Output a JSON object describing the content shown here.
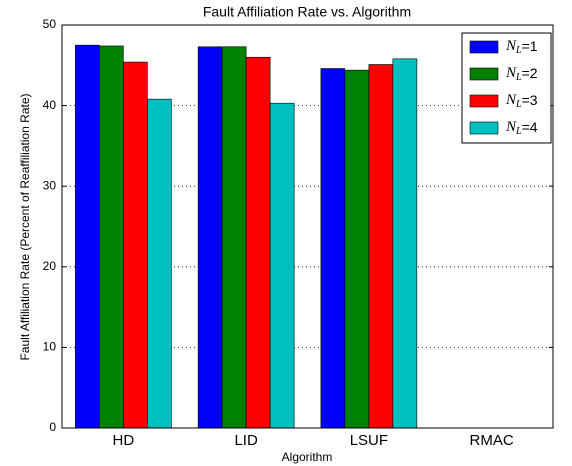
{
  "chart_data": {
    "type": "bar",
    "title": "Fault Affiliation Rate vs. Algorithm",
    "xlabel": "Algorithm",
    "ylabel": "Fault Affiliation Rate (Percent of Reaffiliation Rate)",
    "categories": [
      "HD",
      "LID",
      "LSUF",
      "RMAC"
    ],
    "series": [
      {
        "name": "NL=1",
        "color": "#0000ff",
        "values": [
          47.5,
          47.3,
          44.6,
          0
        ]
      },
      {
        "name": "NL=2",
        "color": "#008000",
        "values": [
          47.4,
          47.3,
          44.4,
          0
        ]
      },
      {
        "name": "NL=3",
        "color": "#ff0000",
        "values": [
          45.4,
          46.0,
          45.1,
          0
        ]
      },
      {
        "name": "NL=4",
        "color": "#00bfbf",
        "values": [
          40.8,
          40.3,
          45.8,
          0
        ]
      }
    ],
    "ylim": [
      0,
      50
    ],
    "yticks": [
      0,
      10,
      20,
      30,
      40,
      50
    ],
    "grid": true,
    "legend": "upper right"
  }
}
